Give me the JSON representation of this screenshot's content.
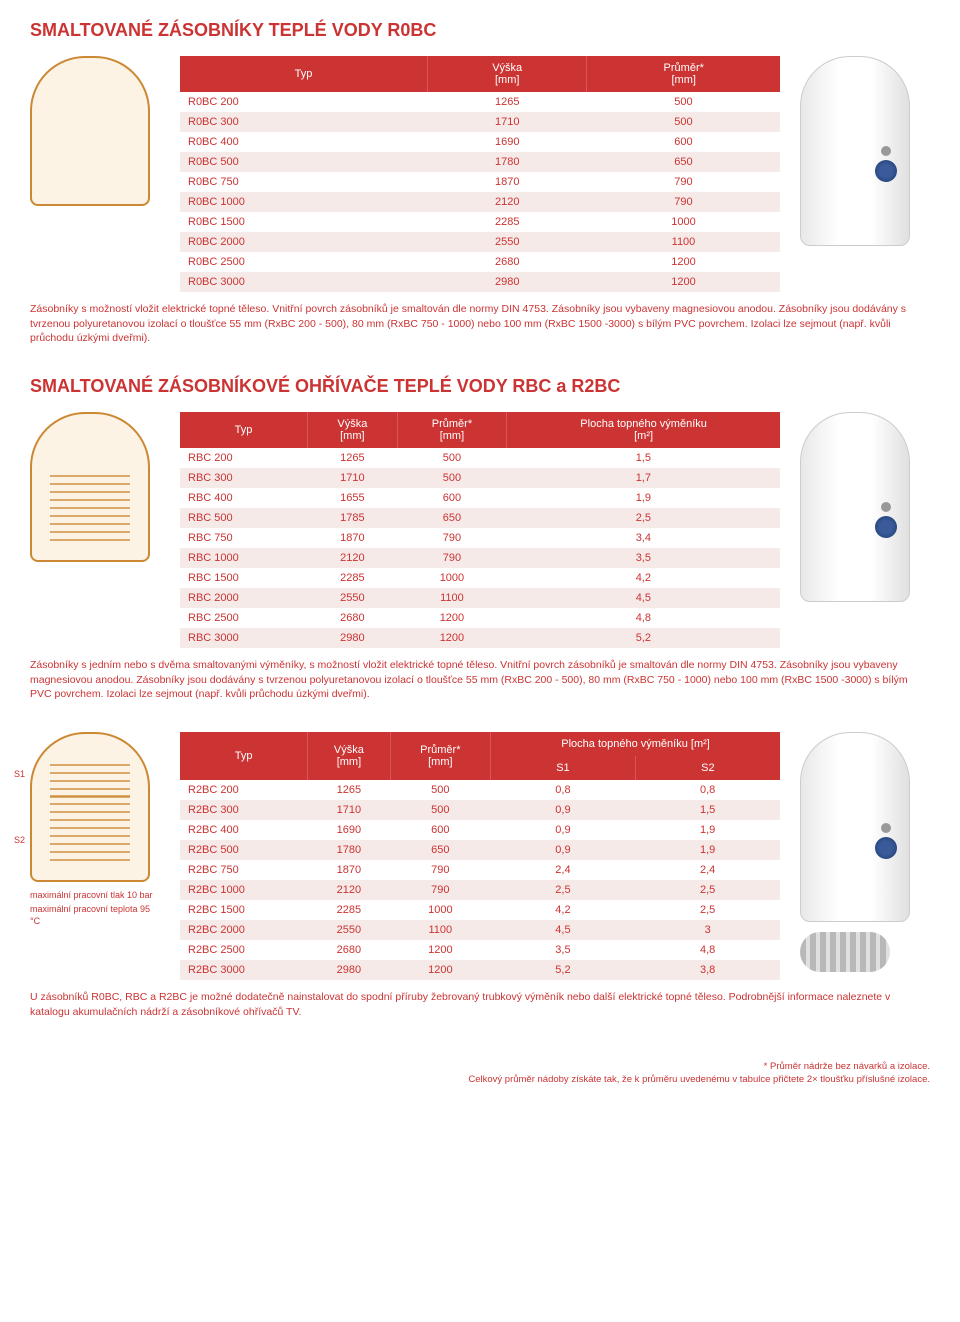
{
  "section1": {
    "title": "SMALTOVANÉ ZÁSOBNÍKY TEPLÉ VODY R0BC",
    "headers": [
      "Typ",
      "Výška\n[mm]",
      "Průměr*\n[mm]"
    ],
    "rows": [
      [
        "R0BC 200",
        "1265",
        "500"
      ],
      [
        "R0BC 300",
        "1710",
        "500"
      ],
      [
        "R0BC 400",
        "1690",
        "600"
      ],
      [
        "R0BC 500",
        "1780",
        "650"
      ],
      [
        "R0BC 750",
        "1870",
        "790"
      ],
      [
        "R0BC 1000",
        "2120",
        "790"
      ],
      [
        "R0BC 1500",
        "2285",
        "1000"
      ],
      [
        "R0BC 2000",
        "2550",
        "1100"
      ],
      [
        "R0BC 2500",
        "2680",
        "1200"
      ],
      [
        "R0BC 3000",
        "2980",
        "1200"
      ]
    ],
    "desc": "Zásobníky s možností vložit elektrické topné těleso. Vnitřní povrch zásobníků je smaltován dle normy DIN 4753. Zásobníky jsou vybaveny magnesiovou anodou. Zásobníky jsou dodávány s tvrzenou polyuretanovou izolací o tloušťce 55 mm (RxBC 200 - 500), 80 mm (RxBC 750 - 1000) nebo 100 mm (RxBC 1500 -3000) s bílým PVC povrchem. Izolaci lze sejmout (např. kvůli průchodu úzkými dveřmi)."
  },
  "section2": {
    "title": "SMALTOVANÉ ZÁSOBNÍKOVÉ OHŘÍVAČE TEPLÉ VODY RBC a R2BC",
    "headers": [
      "Typ",
      "Výška\n[mm]",
      "Průměr*\n[mm]",
      "Plocha topného výměníku\n[m²]"
    ],
    "rows": [
      [
        "RBC 200",
        "1265",
        "500",
        "1,5"
      ],
      [
        "RBC 300",
        "1710",
        "500",
        "1,7"
      ],
      [
        "RBC 400",
        "1655",
        "600",
        "1,9"
      ],
      [
        "RBC 500",
        "1785",
        "650",
        "2,5"
      ],
      [
        "RBC 750",
        "1870",
        "790",
        "3,4"
      ],
      [
        "RBC 1000",
        "2120",
        "790",
        "3,5"
      ],
      [
        "RBC 1500",
        "2285",
        "1000",
        "4,2"
      ],
      [
        "RBC 2000",
        "2550",
        "1100",
        "4,5"
      ],
      [
        "RBC 2500",
        "2680",
        "1200",
        "4,8"
      ],
      [
        "RBC 3000",
        "2980",
        "1200",
        "5,2"
      ]
    ],
    "desc": "Zásobníky s jedním nebo s dvěma smaltovanými výměníky, s možností vložit elektrické topné těleso. Vnitřní povrch zásobníků je smaltován dle normy DIN 4753. Zásobníky jsou vybaveny magnesiovou anodou. Zásobníky jsou dodávány s tvrzenou polyuretanovou izolací o tloušťce 55 mm (RxBC 200 - 500), 80 mm (RxBC 750 - 1000) nebo 100 mm (RxBC 1500 -3000) s bílým PVC povrchem. Izolaci lze sejmout (např. kvůli průchodu úzkými dveřmi)."
  },
  "section3": {
    "headers_top": [
      "Typ",
      "Výška",
      "Průměr*",
      "Plocha topného výměníku [m²]"
    ],
    "headers_sub": [
      "",
      "[mm]",
      "[mm]",
      "S1",
      "S2"
    ],
    "rows": [
      [
        "R2BC 200",
        "1265",
        "500",
        "0,8",
        "0,8"
      ],
      [
        "R2BC 300",
        "1710",
        "500",
        "0,9",
        "1,5"
      ],
      [
        "R2BC 400",
        "1690",
        "600",
        "0,9",
        "1,9"
      ],
      [
        "R2BC 500",
        "1780",
        "650",
        "0,9",
        "1,9"
      ],
      [
        "R2BC 750",
        "1870",
        "790",
        "2,4",
        "2,4"
      ],
      [
        "R2BC 1000",
        "2120",
        "790",
        "2,5",
        "2,5"
      ],
      [
        "R2BC 1500",
        "2285",
        "1000",
        "4,2",
        "2,5"
      ],
      [
        "R2BC 2000",
        "2550",
        "1100",
        "4,5",
        "3"
      ],
      [
        "R2BC 2500",
        "2680",
        "1200",
        "3,5",
        "4,8"
      ],
      [
        "R2BC 3000",
        "2980",
        "1200",
        "5,2",
        "3,8"
      ]
    ],
    "note1": "maximální pracovní tlak 10 bar",
    "note2": "maximální pracovní teplota 95 °C",
    "desc": "U zásobníků R0BC, RBC a R2BC je možné dodatečně nainstalovat do spodní příruby žebrovaný trubkový výměník nebo další elektrické topné těleso. Podrobnější informace naleznete v katalogu akumulačních nádrží a zásobníkové ohřívačů TV."
  },
  "s1_label": "S1",
  "s2_label": "S2",
  "footer": {
    "line1": "* Průměr nádrže bez návarků a izolace.",
    "line2": "Celkový průměr nádoby získáte tak, že k průměru uvedenému v tabulce přičtete 2× tloušťku příslušné izolace."
  },
  "colors": {
    "accent": "#cc3333",
    "row_alt": "#f5eae8",
    "diagram_stroke": "#cc8833",
    "diagram_fill": "#fdf3e5"
  }
}
